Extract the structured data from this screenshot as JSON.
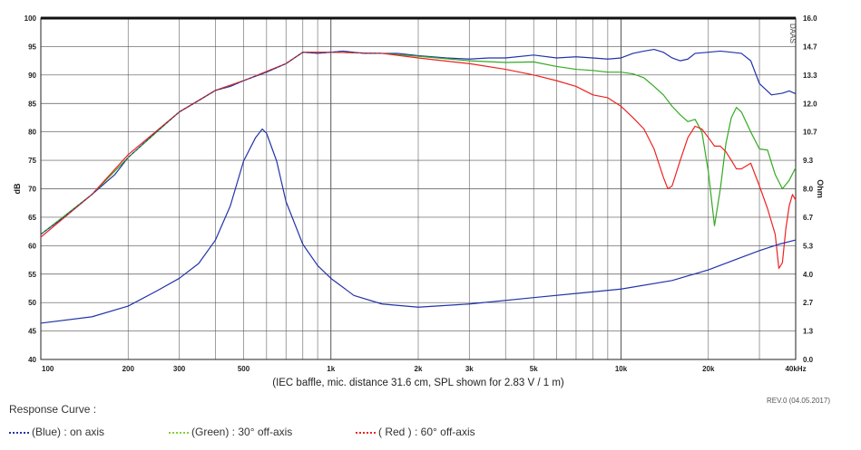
{
  "chart_data": {
    "type": "line",
    "caption": "(IEC baffle, mic. distance 31.6 cm, SPL shown for 2.83 V / 1 m)",
    "ylabel_left": "dB",
    "ylabel_right": "Ohm",
    "right_corner_label": "DAAS",
    "x_scale": "log",
    "xlim": [
      100,
      40000
    ],
    "ylim_left": [
      40,
      100
    ],
    "ylim_right": [
      0.0,
      16.0
    ],
    "x_tick_labels": [
      {
        "x": 100,
        "label": "100"
      },
      {
        "x": 200,
        "label": "200"
      },
      {
        "x": 300,
        "label": "300"
      },
      {
        "x": 500,
        "label": "500"
      },
      {
        "x": 1000,
        "label": "1k"
      },
      {
        "x": 2000,
        "label": "2k"
      },
      {
        "x": 3000,
        "label": "3k"
      },
      {
        "x": 5000,
        "label": "5k"
      },
      {
        "x": 10000,
        "label": "10k"
      },
      {
        "x": 20000,
        "label": "20k"
      },
      {
        "x": 40000,
        "label": "40kHz"
      }
    ],
    "y_ticks_left": [
      100,
      95,
      90,
      85,
      80,
      75,
      70,
      65,
      60,
      55,
      50,
      45,
      40
    ],
    "y_ticks_right": [
      "16.0",
      "14.7",
      "13.3",
      "12.0",
      "10.7",
      "9.3",
      "8.0",
      "6.7",
      "5.3",
      "4.0",
      "2.7",
      "1.3",
      "0.0"
    ],
    "grid": true,
    "series": [
      {
        "name": "(Blue) : on axis",
        "color": "#2233aa",
        "axis": "left",
        "points": [
          [
            100,
            62.0
          ],
          [
            120,
            65.0
          ],
          [
            150,
            69.0
          ],
          [
            180,
            72.5
          ],
          [
            200,
            75.5
          ],
          [
            250,
            80.0
          ],
          [
            300,
            83.5
          ],
          [
            350,
            85.5
          ],
          [
            400,
            87.3
          ],
          [
            450,
            88.0
          ],
          [
            500,
            89.0
          ],
          [
            600,
            90.5
          ],
          [
            700,
            92.0
          ],
          [
            800,
            94.0
          ],
          [
            900,
            93.8
          ],
          [
            1000,
            94.0
          ],
          [
            1100,
            94.2
          ],
          [
            1300,
            93.8
          ],
          [
            1500,
            93.8
          ],
          [
            1700,
            93.8
          ],
          [
            2000,
            93.4
          ],
          [
            2500,
            93.0
          ],
          [
            3000,
            92.8
          ],
          [
            3500,
            93.0
          ],
          [
            4000,
            93.0
          ],
          [
            5000,
            93.5
          ],
          [
            6000,
            93.0
          ],
          [
            7000,
            93.2
          ],
          [
            8000,
            93.0
          ],
          [
            9000,
            92.8
          ],
          [
            10000,
            93.0
          ],
          [
            11000,
            93.8
          ],
          [
            12000,
            94.2
          ],
          [
            13000,
            94.5
          ],
          [
            14000,
            94.0
          ],
          [
            15000,
            93.0
          ],
          [
            16000,
            92.5
          ],
          [
            17000,
            92.8
          ],
          [
            18000,
            93.8
          ],
          [
            20000,
            94.0
          ],
          [
            22000,
            94.2
          ],
          [
            24000,
            94.0
          ],
          [
            26000,
            93.8
          ],
          [
            28000,
            92.5
          ],
          [
            30000,
            88.5
          ],
          [
            33000,
            86.5
          ],
          [
            36000,
            86.8
          ],
          [
            38000,
            87.2
          ],
          [
            40000,
            86.7
          ]
        ]
      },
      {
        "name": "(Green) : 30° off-axis",
        "color": "#33aa22",
        "axis": "left",
        "points": [
          [
            100,
            62.0
          ],
          [
            150,
            69.0
          ],
          [
            200,
            75.5
          ],
          [
            300,
            83.5
          ],
          [
            400,
            87.3
          ],
          [
            500,
            89.0
          ],
          [
            700,
            92.0
          ],
          [
            800,
            94.0
          ],
          [
            1000,
            94.0
          ],
          [
            1500,
            93.8
          ],
          [
            2000,
            93.3
          ],
          [
            3000,
            92.5
          ],
          [
            4000,
            92.2
          ],
          [
            5000,
            92.3
          ],
          [
            6000,
            91.5
          ],
          [
            7000,
            91.0
          ],
          [
            8000,
            90.8
          ],
          [
            9000,
            90.5
          ],
          [
            10000,
            90.5
          ],
          [
            11000,
            90.2
          ],
          [
            12000,
            89.5
          ],
          [
            13000,
            88.0
          ],
          [
            14000,
            86.5
          ],
          [
            15000,
            84.5
          ],
          [
            16000,
            83.0
          ],
          [
            17000,
            81.8
          ],
          [
            18000,
            82.2
          ],
          [
            19000,
            80.0
          ],
          [
            20000,
            73.0
          ],
          [
            21000,
            63.5
          ],
          [
            22000,
            70.0
          ],
          [
            23000,
            78.0
          ],
          [
            24000,
            82.5
          ],
          [
            25000,
            84.3
          ],
          [
            26000,
            83.5
          ],
          [
            28000,
            80.0
          ],
          [
            30000,
            77.0
          ],
          [
            32000,
            76.8
          ],
          [
            34000,
            72.5
          ],
          [
            36000,
            70.0
          ],
          [
            38000,
            71.5
          ],
          [
            40000,
            73.7
          ]
        ]
      },
      {
        "name": "( Red ) : 60° off-axis",
        "color": "#ee2222",
        "axis": "left",
        "points": [
          [
            100,
            61.5
          ],
          [
            150,
            69.0
          ],
          [
            200,
            76.0
          ],
          [
            300,
            83.5
          ],
          [
            400,
            87.3
          ],
          [
            500,
            89.0
          ],
          [
            700,
            92.0
          ],
          [
            800,
            94.0
          ],
          [
            1000,
            94.0
          ],
          [
            1500,
            93.8
          ],
          [
            2000,
            93.0
          ],
          [
            3000,
            92.0
          ],
          [
            4000,
            91.0
          ],
          [
            5000,
            90.0
          ],
          [
            6000,
            89.0
          ],
          [
            7000,
            88.0
          ],
          [
            8000,
            86.5
          ],
          [
            9000,
            86.0
          ],
          [
            10000,
            84.5
          ],
          [
            11000,
            82.5
          ],
          [
            12000,
            80.5
          ],
          [
            13000,
            77.0
          ],
          [
            14000,
            72.0
          ],
          [
            14500,
            70.0
          ],
          [
            15000,
            70.5
          ],
          [
            16000,
            75.0
          ],
          [
            17000,
            79.0
          ],
          [
            18000,
            81.0
          ],
          [
            19000,
            80.5
          ],
          [
            20000,
            79.0
          ],
          [
            21000,
            77.5
          ],
          [
            22000,
            77.5
          ],
          [
            23000,
            76.5
          ],
          [
            24000,
            75.0
          ],
          [
            25000,
            73.5
          ],
          [
            26000,
            73.5
          ],
          [
            28000,
            74.5
          ],
          [
            30000,
            70.5
          ],
          [
            32000,
            66.5
          ],
          [
            34000,
            62.0
          ],
          [
            35000,
            56.0
          ],
          [
            36000,
            57.0
          ],
          [
            37000,
            63.0
          ],
          [
            38000,
            67.0
          ],
          [
            39000,
            69.0
          ],
          [
            40000,
            68.0
          ]
        ]
      },
      {
        "name": "Impedance",
        "color": "#2233aa",
        "axis": "right",
        "points": [
          [
            100,
            1.7
          ],
          [
            150,
            2.0
          ],
          [
            200,
            2.5
          ],
          [
            250,
            3.2
          ],
          [
            300,
            3.8
          ],
          [
            350,
            4.5
          ],
          [
            400,
            5.6
          ],
          [
            450,
            7.2
          ],
          [
            500,
            9.3
          ],
          [
            550,
            10.4
          ],
          [
            580,
            10.8
          ],
          [
            600,
            10.6
          ],
          [
            650,
            9.3
          ],
          [
            700,
            7.4
          ],
          [
            800,
            5.4
          ],
          [
            900,
            4.4
          ],
          [
            1000,
            3.8
          ],
          [
            1200,
            3.0
          ],
          [
            1500,
            2.6
          ],
          [
            2000,
            2.45
          ],
          [
            3000,
            2.6
          ],
          [
            5000,
            2.9
          ],
          [
            10000,
            3.3
          ],
          [
            15000,
            3.7
          ],
          [
            20000,
            4.2
          ],
          [
            25000,
            4.7
          ],
          [
            30000,
            5.1
          ],
          [
            35000,
            5.4
          ],
          [
            40000,
            5.6
          ]
        ]
      }
    ]
  },
  "footer": {
    "response_title": "Response Curve :",
    "rev": "REV.0 (04.05.2017)",
    "legend": [
      {
        "label": "(Blue)  : on axis",
        "color": "#2233aa"
      },
      {
        "label": "(Green) : 30° off-axis",
        "color": "#88cc33"
      },
      {
        "label": "( Red ) : 60° off-axis",
        "color": "#ee2222"
      }
    ]
  }
}
